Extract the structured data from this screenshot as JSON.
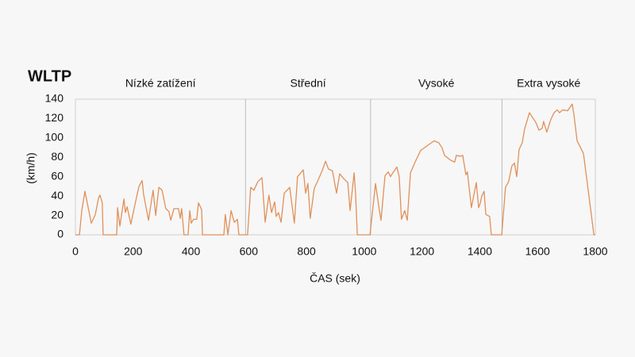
{
  "chart_data": {
    "type": "line",
    "title": "WLTP",
    "x_label": "ČAS (sek)",
    "y_label": "(km/h)",
    "phases": [
      {
        "label": "Nízké zatížení",
        "start": 0,
        "end": 589
      },
      {
        "label": "Střední",
        "start": 589,
        "end": 1022
      },
      {
        "label": "Vysoké",
        "start": 1022,
        "end": 1477
      },
      {
        "label": "Extra vysoké",
        "start": 1477,
        "end": 1800
      }
    ],
    "x": [
      0,
      14,
      22,
      33,
      49,
      55,
      69,
      80,
      85,
      93,
      96,
      143,
      146,
      154,
      168,
      173,
      179,
      192,
      206,
      220,
      231,
      236,
      253,
      269,
      278,
      289,
      300,
      313,
      324,
      330,
      341,
      357,
      363,
      368,
      376,
      390,
      396,
      401,
      409,
      420,
      426,
      437,
      440,
      514,
      519,
      528,
      539,
      550,
      561,
      566,
      596,
      607,
      618,
      632,
      646,
      657,
      670,
      679,
      690,
      695,
      703,
      712,
      723,
      742,
      758,
      769,
      789,
      797,
      805,
      813,
      827,
      841,
      854,
      866,
      876,
      890,
      904,
      915,
      929,
      943,
      951,
      965,
      970,
      976,
      1020,
      1039,
      1050,
      1058,
      1072,
      1083,
      1091,
      1099,
      1113,
      1121,
      1129,
      1140,
      1149,
      1160,
      1176,
      1195,
      1223,
      1242,
      1258,
      1269,
      1278,
      1299,
      1313,
      1319,
      1333,
      1341,
      1352,
      1357,
      1371,
      1388,
      1396,
      1401,
      1407,
      1415,
      1421,
      1434,
      1440,
      1476,
      1489,
      1500,
      1511,
      1520,
      1528,
      1536,
      1547,
      1555,
      1572,
      1594,
      1605,
      1616,
      1621,
      1632,
      1646,
      1657,
      1668,
      1676,
      1687,
      1704,
      1720,
      1726,
      1737,
      1759,
      1778,
      1795,
      1800
    ],
    "series": [
      {
        "name": "WLTP",
        "color": "#e0905a",
        "values": [
          0,
          0,
          25,
          45,
          21,
          12,
          21,
          38,
          41,
          33,
          0,
          0,
          28,
          9,
          37,
          23,
          29,
          11,
          31,
          50,
          56,
          42,
          15,
          46,
          20,
          49,
          46,
          27,
          24,
          15,
          27,
          27,
          17,
          27,
          0,
          0,
          25,
          12,
          16,
          16,
          33,
          26,
          0,
          0,
          21,
          0,
          25,
          13,
          16,
          0,
          0,
          49,
          46,
          55,
          59,
          13,
          41,
          23,
          34,
          19,
          23,
          13,
          43,
          49,
          12,
          60,
          67,
          43,
          53,
          17,
          48,
          57,
          66,
          76,
          68,
          66,
          43,
          63,
          58,
          54,
          25,
          64,
          42,
          0,
          0,
          53,
          30,
          15,
          61,
          65,
          60,
          64,
          70,
          60,
          16,
          25,
          15,
          64,
          75,
          87,
          93,
          97,
          95,
          90,
          82,
          77,
          75,
          82,
          81,
          82,
          62,
          65,
          28,
          54,
          28,
          32,
          40,
          45,
          21,
          19,
          0,
          0,
          49,
          55,
          71,
          74,
          60,
          88,
          95,
          109,
          126,
          116,
          108,
          110,
          117,
          106,
          119,
          126,
          129,
          126,
          129,
          128,
          135,
          124,
          97,
          84,
          40,
          0,
          0
        ]
      }
    ],
    "xlim": [
      0,
      1800
    ],
    "ylim": [
      0,
      140
    ],
    "xticks": [
      0,
      200,
      400,
      600,
      800,
      1000,
      1200,
      1400,
      1600,
      1800
    ],
    "yticks": [
      0,
      20,
      40,
      60,
      80,
      100,
      120,
      140
    ]
  }
}
